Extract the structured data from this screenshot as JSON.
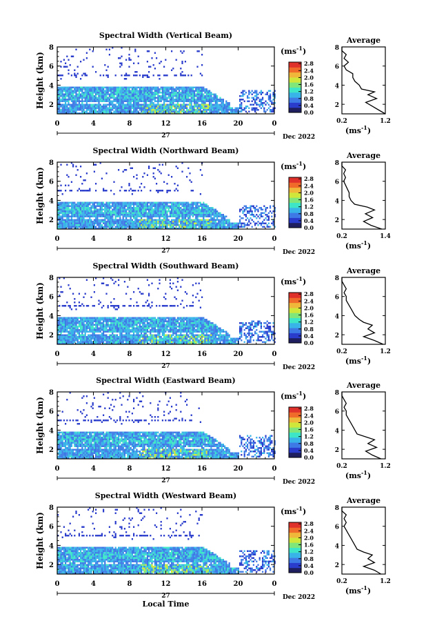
{
  "chart_data": {
    "type": "heatmap",
    "shared": {
      "xlabel": "Local Time",
      "x_ticks": [
        "0",
        "4",
        "8",
        "12",
        "16",
        "20",
        "0"
      ],
      "xlim": [
        0,
        24
      ],
      "day_label": "27",
      "month_label": "Dec 2022",
      "ylabel": "Height (km)",
      "y_ticks": [
        "2",
        "4",
        "6",
        "8"
      ],
      "ylim": [
        1,
        8
      ],
      "colorbar_unit": "(ms",
      "colorbar_exp": "-1",
      "colorbar_ticks": [
        "0.0",
        "0.4",
        "0.8",
        "1.2",
        "1.6",
        "2.0",
        "2.4",
        "2.8"
      ],
      "colorbar_range": [
        0.0,
        2.8
      ],
      "avg_title": "Average",
      "avg_y_ticks": [
        "2",
        "4",
        "6",
        "8"
      ],
      "avg_unit": "(ms",
      "avg_exp": "-1",
      "colors": [
        "#1f1f5f",
        "#2a3ccc",
        "#3d7ae6",
        "#38b4e8",
        "#3ee6c8",
        "#7ee67a",
        "#cfe63a",
        "#f0b83a",
        "#f06a2a",
        "#e0302a"
      ]
    },
    "panels": [
      {
        "title": "Spectral Width (Vertical Beam)",
        "avg_xlim": [
          0.2,
          1.2
        ],
        "avg_x_ticks": [
          "0.2",
          "1.2"
        ],
        "avg_profile": [
          [
            1.0,
            1.2
          ],
          [
            1.4,
            1.05
          ],
          [
            1.8,
            0.9
          ],
          [
            2.2,
            0.75
          ],
          [
            2.6,
            1.0
          ],
          [
            3.0,
            0.8
          ],
          [
            3.3,
            0.95
          ],
          [
            3.6,
            0.65
          ],
          [
            4.0,
            0.6
          ],
          [
            4.4,
            0.5
          ],
          [
            4.8,
            0.45
          ],
          [
            5.2,
            0.45
          ],
          [
            5.6,
            0.3
          ],
          [
            6.0,
            0.25
          ],
          [
            6.4,
            0.35
          ],
          [
            6.8,
            0.25
          ],
          [
            7.2,
            0.3
          ],
          [
            7.6,
            0.2
          ],
          [
            8.0,
            0.2
          ]
        ]
      },
      {
        "title": "Spectral Width (Northward Beam)",
        "avg_xlim": [
          0.2,
          1.4
        ],
        "avg_x_ticks": [
          "0.2",
          "1.4"
        ],
        "avg_profile": [
          [
            1.0,
            1.3
          ],
          [
            1.4,
            1.0
          ],
          [
            1.8,
            0.8
          ],
          [
            2.2,
            1.05
          ],
          [
            2.6,
            0.85
          ],
          [
            3.0,
            1.1
          ],
          [
            3.3,
            0.9
          ],
          [
            3.6,
            0.55
          ],
          [
            4.0,
            0.45
          ],
          [
            4.4,
            0.4
          ],
          [
            4.8,
            0.4
          ],
          [
            5.2,
            0.35
          ],
          [
            5.6,
            0.3
          ],
          [
            6.0,
            0.25
          ],
          [
            6.4,
            0.3
          ],
          [
            6.8,
            0.25
          ],
          [
            7.2,
            0.3
          ],
          [
            7.6,
            0.2
          ],
          [
            8.0,
            0.2
          ]
        ]
      },
      {
        "title": "Spectral Width (Southward Beam)",
        "avg_xlim": [
          0.2,
          1.2
        ],
        "avg_x_ticks": [
          "0.2",
          "1.2"
        ],
        "avg_profile": [
          [
            1.0,
            1.15
          ],
          [
            1.4,
            0.95
          ],
          [
            1.8,
            0.7
          ],
          [
            2.2,
            0.95
          ],
          [
            2.6,
            0.8
          ],
          [
            3.0,
            0.9
          ],
          [
            3.3,
            0.7
          ],
          [
            3.6,
            0.6
          ],
          [
            4.0,
            0.5
          ],
          [
            4.4,
            0.45
          ],
          [
            4.8,
            0.4
          ],
          [
            5.2,
            0.35
          ],
          [
            5.6,
            0.3
          ],
          [
            6.0,
            0.3
          ],
          [
            6.4,
            0.25
          ],
          [
            6.8,
            0.3
          ],
          [
            7.2,
            0.25
          ],
          [
            7.6,
            0.2
          ],
          [
            8.0,
            0.2
          ]
        ]
      },
      {
        "title": "Spectral Width (Eastward Beam)",
        "avg_xlim": [
          0.2,
          1.2
        ],
        "avg_x_ticks": [
          "0.2",
          "1.2"
        ],
        "avg_profile": [
          [
            1.0,
            1.1
          ],
          [
            1.4,
            0.9
          ],
          [
            1.8,
            0.75
          ],
          [
            2.2,
            1.0
          ],
          [
            2.6,
            0.8
          ],
          [
            3.0,
            0.95
          ],
          [
            3.3,
            0.75
          ],
          [
            3.6,
            0.55
          ],
          [
            4.0,
            0.5
          ],
          [
            4.4,
            0.45
          ],
          [
            4.8,
            0.4
          ],
          [
            5.2,
            0.35
          ],
          [
            5.6,
            0.3
          ],
          [
            6.0,
            0.3
          ],
          [
            6.4,
            0.25
          ],
          [
            6.8,
            0.3
          ],
          [
            7.2,
            0.25
          ],
          [
            7.6,
            0.2
          ],
          [
            8.0,
            0.2
          ]
        ]
      },
      {
        "title": "Spectral Width (Westward Beam)",
        "avg_xlim": [
          0.2,
          1.2
        ],
        "avg_x_ticks": [
          "0.2",
          "1.2"
        ],
        "avg_profile": [
          [
            1.0,
            1.1
          ],
          [
            1.4,
            0.95
          ],
          [
            1.8,
            0.7
          ],
          [
            2.2,
            0.95
          ],
          [
            2.6,
            0.8
          ],
          [
            3.0,
            0.9
          ],
          [
            3.3,
            0.7
          ],
          [
            3.6,
            0.55
          ],
          [
            4.0,
            0.5
          ],
          [
            4.4,
            0.45
          ],
          [
            4.8,
            0.4
          ],
          [
            5.2,
            0.35
          ],
          [
            5.6,
            0.3
          ],
          [
            6.0,
            0.25
          ],
          [
            6.4,
            0.3
          ],
          [
            6.8,
            0.25
          ],
          [
            7.2,
            0.3
          ],
          [
            7.6,
            0.2
          ],
          [
            8.0,
            0.2
          ]
        ]
      }
    ]
  }
}
